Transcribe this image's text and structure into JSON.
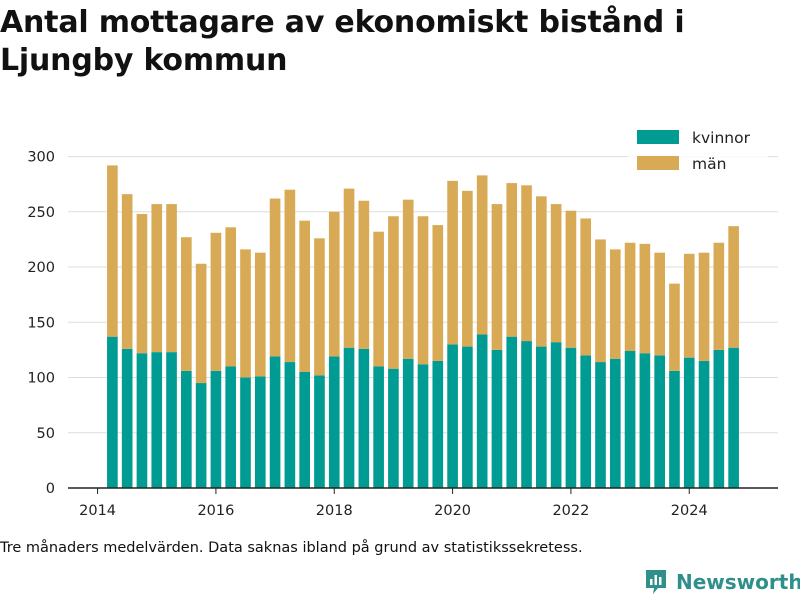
{
  "title": "Antal mottagare av ekonomiskt bistånd i Ljungby kommun",
  "footnote": "Tre månaders medelvärden. Data saknas ibland på grund av statistikssekretess.",
  "brand": {
    "name": "Newsworthy",
    "color": "#2f8f8a"
  },
  "colors": {
    "kvinnor": "#009c94",
    "man": "#d9aa55",
    "grid": "#dddddd",
    "axis": "#222222"
  },
  "chart_data": {
    "type": "bar",
    "stacked": true,
    "x_start": 2014.25,
    "x_step": 0.25,
    "xlim": [
      2013.5,
      2025.5
    ],
    "xticks": [
      2014,
      2016,
      2018,
      2020,
      2022,
      2024
    ],
    "ylim": [
      0,
      315
    ],
    "yticks": [
      0,
      50,
      100,
      150,
      200,
      250,
      300
    ],
    "grid": true,
    "legend_position": "top-right",
    "series": [
      {
        "name": "kvinnor",
        "color": "#009c94",
        "values": [
          137,
          126,
          122,
          123,
          123,
          106,
          95,
          106,
          110,
          100,
          101,
          119,
          114,
          105,
          102,
          119,
          127,
          126,
          110,
          108,
          117,
          112,
          115,
          130,
          128,
          139,
          125,
          137,
          133,
          128,
          132,
          127,
          120,
          114,
          117,
          124,
          122,
          120,
          106,
          118,
          115,
          125,
          127
        ]
      },
      {
        "name": "män",
        "color": "#d9aa55",
        "values": [
          155,
          140,
          126,
          134,
          134,
          121,
          108,
          125,
          126,
          116,
          112,
          143,
          156,
          137,
          124,
          131,
          144,
          134,
          122,
          138,
          144,
          134,
          123,
          148,
          141,
          144,
          132,
          139,
          141,
          136,
          125,
          124,
          124,
          111,
          99,
          98,
          99,
          93,
          79,
          94,
          98,
          97,
          110
        ]
      }
    ]
  }
}
